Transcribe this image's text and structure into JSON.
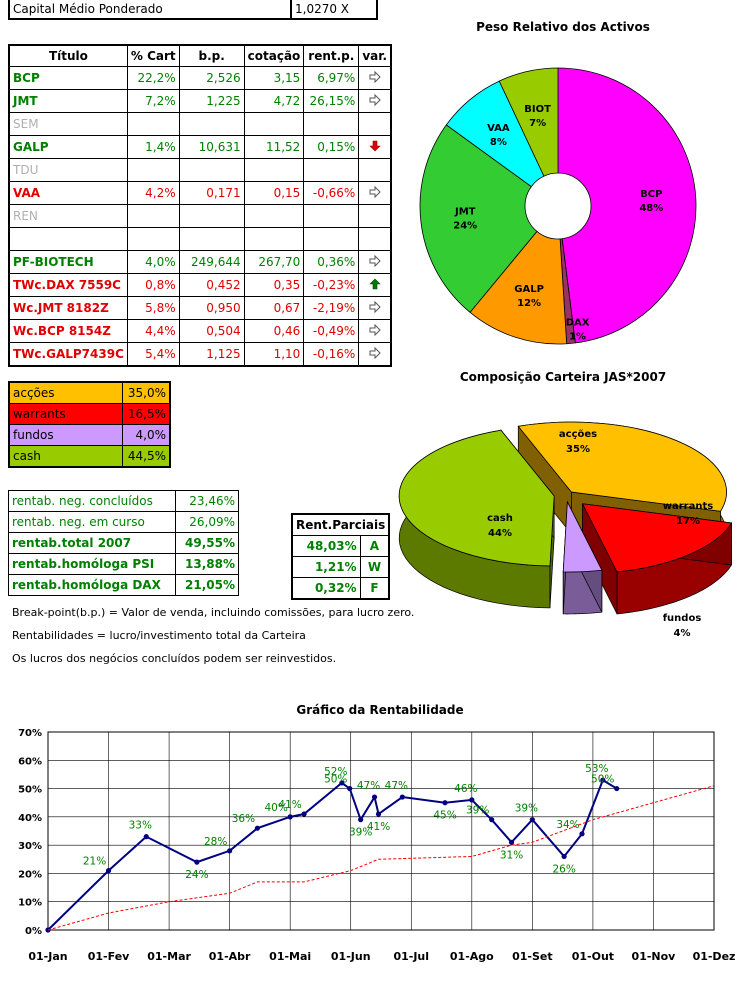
{
  "capital": {
    "label": "Capital Médio Ponderado",
    "value": "1,0270 X"
  },
  "portfolio": {
    "headers": [
      "Título",
      "% Cart",
      "b.p.",
      "cotação",
      "rent.p.",
      "var."
    ],
    "rows": [
      {
        "name": "BCP",
        "pct": "22,2%",
        "bp": "2,526",
        "cot": "3,15",
        "rent": "6,97%",
        "var": "right",
        "color": "g"
      },
      {
        "name": "JMT",
        "pct": "7,2%",
        "bp": "1,225",
        "cot": "4,72",
        "rent": "26,15%",
        "var": "right",
        "color": "g"
      },
      {
        "name": "SEM",
        "pct": "",
        "bp": "",
        "cot": "",
        "rent": "",
        "var": "",
        "color": "gy"
      },
      {
        "name": "GALP",
        "pct": "1,4%",
        "bp": "10,631",
        "cot": "11,52",
        "rent": "0,15%",
        "var": "down",
        "color": "g"
      },
      {
        "name": "TDU",
        "pct": "",
        "bp": "",
        "cot": "",
        "rent": "",
        "var": "",
        "color": "gy"
      },
      {
        "name": "VAA",
        "pct": "4,2%",
        "bp": "0,171",
        "cot": "0,15",
        "rent": "-0,66%",
        "var": "right",
        "color": "r"
      },
      {
        "name": "REN",
        "pct": "",
        "bp": "",
        "cot": "",
        "rent": "",
        "var": "",
        "color": "gy"
      },
      {
        "name": "",
        "pct": "",
        "bp": "",
        "cot": "",
        "rent": "",
        "var": "",
        "color": "g"
      },
      {
        "name": "PF-BIOTECH",
        "pct": "4,0%",
        "bp": "249,644",
        "cot": "267,70",
        "rent": "0,36%",
        "var": "right",
        "color": "g"
      },
      {
        "name": "TWc.DAX 7559C",
        "pct": "0,8%",
        "bp": "0,452",
        "cot": "0,35",
        "rent": "-0,23%",
        "var": "up",
        "color": "r"
      },
      {
        "name": "Wc.JMT 8182Z",
        "pct": "5,8%",
        "bp": "0,950",
        "cot": "0,67",
        "rent": "-2,19%",
        "var": "right",
        "color": "r"
      },
      {
        "name": "Wc.BCP 8154Z",
        "pct": "4,4%",
        "bp": "0,504",
        "cot": "0,46",
        "rent": "-0,49%",
        "var": "right",
        "color": "r"
      },
      {
        "name": "TWc.GALP7439C",
        "pct": "5,4%",
        "bp": "1,125",
        "cot": "1,10",
        "rent": "-0,16%",
        "var": "right",
        "color": "r"
      }
    ]
  },
  "allocation": [
    {
      "label": "acções",
      "value": "35,0%",
      "bg": "#ffc000"
    },
    {
      "label": "warrants",
      "value": "16,5%",
      "bg": "#ff0000"
    },
    {
      "label": "fundos",
      "value": "4,0%",
      "bg": "#cc99ff"
    },
    {
      "label": "cash",
      "value": "44,5%",
      "bg": "#99cc00"
    }
  ],
  "returns": [
    {
      "label": "rentab. neg. concluídos",
      "value": "23,46%",
      "bold": false
    },
    {
      "label": "rentab. neg. em curso",
      "value": "26,09%",
      "bold": false
    },
    {
      "label": "rentab.total 2007",
      "value": "49,55%",
      "bold": true
    },
    {
      "label": "rentab.homóloga PSI",
      "value": "13,88%",
      "bold": true
    },
    {
      "label": "rentab.homóloga DAX",
      "value": "21,05%",
      "bold": true
    }
  ],
  "partials": {
    "header": "Rent.Parciais",
    "rows": [
      {
        "value": "48,03%",
        "tag": "A"
      },
      {
        "value": "1,21%",
        "tag": "W"
      },
      {
        "value": "0,32%",
        "tag": "F"
      }
    ]
  },
  "notes": [
    "Break-point(b.p.) = Valor de venda, incluindo comissões, para lucro zero.",
    "Rentabilidades = lucro/investimento total da Carteira",
    "Os lucros dos negócios concluídos podem ser reinvestidos."
  ],
  "chart_data": [
    {
      "type": "pie",
      "title": "Peso Relativo dos Activos",
      "donut": true,
      "slices": [
        {
          "label": "BCP",
          "value": 48,
          "color": "#ff00ff"
        },
        {
          "label": "DAX",
          "value": 1,
          "color": "#993366"
        },
        {
          "label": "GALP",
          "value": 12,
          "color": "#ff9900"
        },
        {
          "label": "JMT",
          "value": 24,
          "color": "#33cc33"
        },
        {
          "label": "VAA",
          "value": 8,
          "color": "#00ffff"
        },
        {
          "label": "BIOT",
          "value": 7,
          "color": "#99cc00"
        }
      ]
    },
    {
      "type": "pie",
      "title": "Composição Carteira JAS*2007",
      "style": "3d-exploded",
      "slices": [
        {
          "label": "acções",
          "value": 35,
          "color": "#ffc000"
        },
        {
          "label": "warrants",
          "value": 17,
          "color": "#ff0000"
        },
        {
          "label": "fundos",
          "value": 4,
          "color": "#cc99ff"
        },
        {
          "label": "cash",
          "value": 44,
          "color": "#99cc00"
        }
      ]
    },
    {
      "type": "line",
      "title": "Gráfico da Rentabilidade",
      "x_labels": [
        "01-Jan",
        "01-Fev",
        "01-Mar",
        "01-Abr",
        "01-Mai",
        "01-Jun",
        "01-Jul",
        "01-Ago",
        "01-Set",
        "01-Out",
        "01-Nov",
        "01-Dez"
      ],
      "y_ticks": [
        "0%",
        "10%",
        "20%",
        "30%",
        "40%",
        "50%",
        "60%",
        "70%"
      ],
      "ylim": [
        0,
        70
      ],
      "grid": true,
      "series": [
        {
          "style": "solid-markers",
          "color": "#000080",
          "points": [
            {
              "x": "01-Jan",
              "y": 0,
              "label": ""
            },
            {
              "x": "01-Fev",
              "y": 21,
              "label": "21%"
            },
            {
              "x": "20-Fev",
              "y": 33,
              "label": "33%"
            },
            {
              "x": "15-Mar",
              "y": 24,
              "label": "24%"
            },
            {
              "x": "01-Abr",
              "y": 28,
              "label": "28%"
            },
            {
              "x": "15-Abr",
              "y": 36,
              "label": "36%"
            },
            {
              "x": "01-Mai",
              "y": 40,
              "label": "40%"
            },
            {
              "x": "08-Mai",
              "y": 41,
              "label": "41%"
            },
            {
              "x": "27-Mai",
              "y": 52,
              "label": "52%"
            },
            {
              "x": "31-Mai",
              "y": 50,
              "label": "50%"
            },
            {
              "x": "06-Jun",
              "y": 39,
              "label": "39%"
            },
            {
              "x": "13-Jun",
              "y": 47,
              "label": "47%"
            },
            {
              "x": "15-Jun",
              "y": 41,
              "label": "41%"
            },
            {
              "x": "27-Jun",
              "y": 47,
              "label": "47%"
            },
            {
              "x": "18-Jul",
              "y": 45,
              "label": "45%"
            },
            {
              "x": "01-Ago",
              "y": 46,
              "label": "46%"
            },
            {
              "x": "11-Ago",
              "y": 39,
              "label": "39%"
            },
            {
              "x": "21-Ago",
              "y": 31,
              "label": "31%"
            },
            {
              "x": "01-Set",
              "y": 39,
              "label": "39%"
            },
            {
              "x": "17-Set",
              "y": 26,
              "label": "26%"
            },
            {
              "x": "26-Set",
              "y": 34,
              "label": "34%"
            },
            {
              "x": "06-Out",
              "y": 53,
              "label": "53%"
            },
            {
              "x": "13-Out",
              "y": 50,
              "label": "50%"
            }
          ]
        },
        {
          "style": "dashed",
          "color": "#ff0000",
          "points": [
            {
              "x": "01-Jan",
              "y": 0
            },
            {
              "x": "01-Fev",
              "y": 6
            },
            {
              "x": "01-Mar",
              "y": 10
            },
            {
              "x": "01-Abr",
              "y": 13
            },
            {
              "x": "15-Abr",
              "y": 17
            },
            {
              "x": "08-Mai",
              "y": 17
            },
            {
              "x": "01-Jun",
              "y": 21
            },
            {
              "x": "15-Jun",
              "y": 25
            },
            {
              "x": "01-Ago",
              "y": 26
            },
            {
              "x": "21-Ago",
              "y": 30
            },
            {
              "x": "01-Set",
              "y": 31
            },
            {
              "x": "01-Out",
              "y": 39
            },
            {
              "x": "01-Nov",
              "y": 45
            },
            {
              "x": "01-Dez",
              "y": 51
            }
          ]
        }
      ]
    }
  ]
}
